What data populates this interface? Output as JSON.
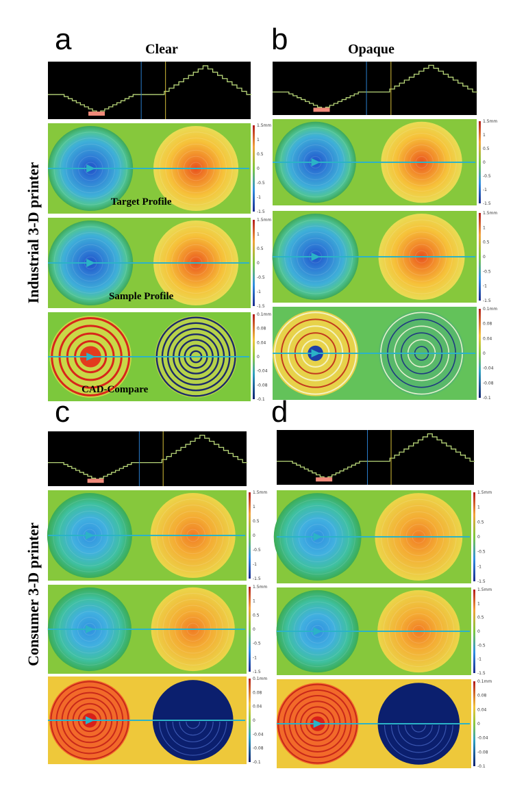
{
  "figure": {
    "panel_letters": [
      "a",
      "b",
      "c",
      "d"
    ],
    "column_titles": [
      "Clear",
      "Opaque"
    ],
    "row_labels": [
      "Industrial 3-D printer",
      "Consumer 3-D printer"
    ],
    "map_labels": [
      "Target Profile",
      "Sample Profile",
      "CAD-Compare"
    ],
    "profile_colorbar": {
      "ticks": [
        "1.5mm",
        "1",
        "0.5",
        "0",
        "-0.5",
        "-1",
        "-1.5"
      ],
      "range": [
        -1.5,
        1.5
      ]
    },
    "compare_colorbar": {
      "ticks": [
        "0.1mm",
        "0.08",
        "0.04",
        "0",
        "-0.04",
        "-0.08",
        "-0.1"
      ],
      "range": [
        -0.1,
        0.1
      ]
    },
    "colors": {
      "background_map": "#86c83c",
      "profile_line": "#2bb3c7",
      "deviation_high": "#e33b1e",
      "deviation_low": "#0b1f6e"
    }
  }
}
